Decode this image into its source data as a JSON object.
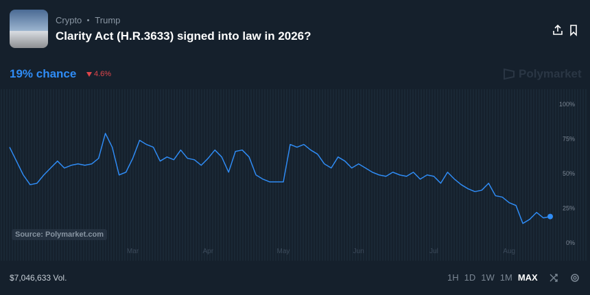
{
  "header": {
    "tags": [
      "Crypto",
      "Trump"
    ],
    "title": "Clarity Act (H.R.3633) signed into law in 2026?"
  },
  "chance": "19% chance",
  "change": "4.6%",
  "brand": "Polymarket",
  "source": "Source: Polymarket.com",
  "volume": "$7,046,633 Vol.",
  "timeframes": [
    "1H",
    "1D",
    "1W",
    "1M",
    "MAX"
  ],
  "active_timeframe": "MAX",
  "chart_data": {
    "type": "line",
    "color": "#2f8cf5",
    "categories": [
      null,
      null,
      null,
      null,
      null,
      null,
      null,
      null,
      null,
      null,
      null,
      null,
      null,
      null,
      null,
      null,
      null,
      null,
      "Mar",
      null,
      null,
      null,
      null,
      null,
      null,
      null,
      null,
      null,
      null,
      "Apr",
      null,
      null,
      null,
      null,
      null,
      null,
      null,
      null,
      null,
      null,
      "May",
      null,
      null,
      null,
      null,
      null,
      null,
      null,
      null,
      null,
      null,
      "Jun",
      null,
      null,
      null,
      null,
      null,
      null,
      null,
      null,
      null,
      null,
      "Jul",
      null,
      null,
      null,
      null,
      null,
      null,
      null,
      null,
      null,
      null,
      "Aug",
      null,
      null,
      null,
      null,
      null,
      null
    ],
    "values": [
      69,
      59,
      49,
      42,
      43,
      49,
      54,
      59,
      54,
      56,
      57,
      56,
      57,
      61,
      79,
      69,
      49,
      51,
      61,
      74,
      71,
      69,
      59,
      62,
      60,
      67,
      61,
      60,
      56,
      61,
      67,
      62,
      51,
      66,
      67,
      62,
      49,
      46,
      44,
      44,
      44,
      71,
      69,
      71,
      67,
      64,
      57,
      54,
      62,
      59,
      54,
      57,
      54,
      51,
      49,
      48,
      51,
      49,
      48,
      51,
      46,
      49,
      48,
      43,
      51,
      46,
      42,
      39,
      37,
      38,
      43,
      34,
      33,
      29,
      27,
      14,
      17,
      22,
      18,
      19
    ],
    "ylim": [
      0,
      100
    ],
    "yticks": [
      {
        "value": 0,
        "label": "0%"
      },
      {
        "value": 25,
        "label": "25%"
      },
      {
        "value": 50,
        "label": "50%"
      },
      {
        "value": 75,
        "label": "75%"
      },
      {
        "value": 100,
        "label": "100%"
      }
    ],
    "y_axis_side": "right"
  }
}
